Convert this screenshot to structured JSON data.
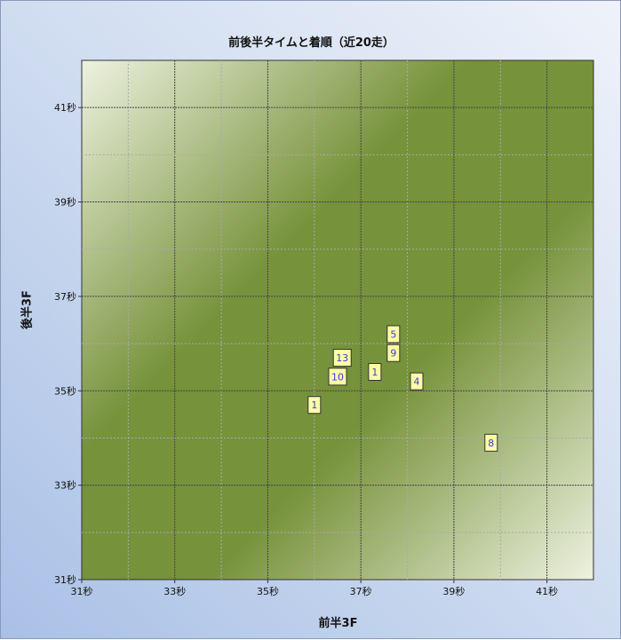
{
  "chart_data": {
    "type": "scatter",
    "title": "前後半タイムと着順（近20走）",
    "xlabel": "前半3F",
    "ylabel": "後半3F",
    "xlim": [
      31,
      42
    ],
    "ylim": [
      31,
      42
    ],
    "xticks": [
      "31秒",
      "33秒",
      "35秒",
      "37秒",
      "39秒",
      "41秒"
    ],
    "yticks": [
      "31秒",
      "33秒",
      "35秒",
      "37秒",
      "39秒",
      "41秒"
    ],
    "grid": true,
    "points": [
      {
        "x": 37.7,
        "y": 36.2,
        "label": "5"
      },
      {
        "x": 37.7,
        "y": 35.8,
        "label": "9"
      },
      {
        "x": 36.6,
        "y": 35.7,
        "label": "13"
      },
      {
        "x": 36.5,
        "y": 35.3,
        "label": "10"
      },
      {
        "x": 37.3,
        "y": 35.4,
        "label": "1"
      },
      {
        "x": 38.2,
        "y": 35.2,
        "label": "4"
      },
      {
        "x": 36.0,
        "y": 34.7,
        "label": "1"
      },
      {
        "x": 39.8,
        "y": 33.9,
        "label": "8"
      }
    ],
    "colors": {
      "marker_fill": "#ffffa8",
      "marker_text": "#3a3ad0",
      "plot_dark": "#76923a",
      "plot_light": "#eef2e0"
    }
  }
}
